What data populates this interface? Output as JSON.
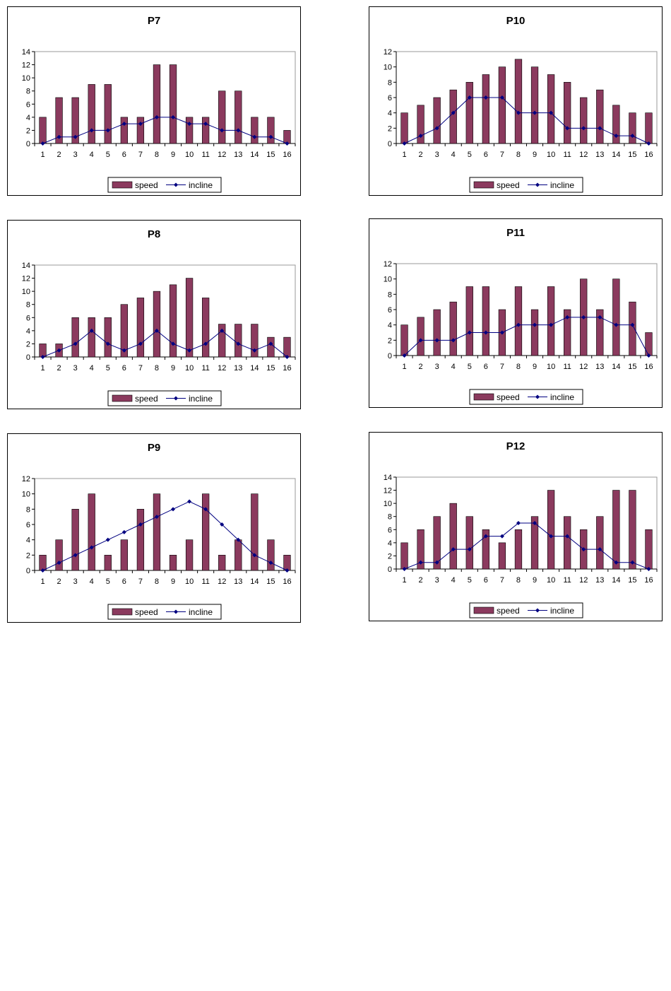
{
  "colors": {
    "speed": "#8B3A5E",
    "incline": "#000080",
    "plot_border": "#999999"
  },
  "chart_data": [
    {
      "id": "p7",
      "type": "bar",
      "title": "P7",
      "ylim": [
        0,
        14
      ],
      "yticks": [
        "0",
        "2",
        "4",
        "6",
        "8",
        "10",
        "12",
        "14"
      ],
      "categories": [
        "1",
        "2",
        "3",
        "4",
        "5",
        "6",
        "7",
        "8",
        "9",
        "10",
        "11",
        "12",
        "13",
        "14",
        "15",
        "16"
      ],
      "series": [
        {
          "name": "speed",
          "type": "bar",
          "values": [
            4,
            7,
            7,
            9,
            9,
            4,
            4,
            12,
            12,
            4,
            4,
            8,
            8,
            4,
            4,
            2
          ]
        },
        {
          "name": "incline",
          "type": "line",
          "values": [
            0,
            1,
            1,
            2,
            2,
            3,
            3,
            4,
            4,
            3,
            3,
            2,
            2,
            1,
            1,
            0
          ]
        }
      ],
      "legend": "bottom",
      "grid": false
    },
    {
      "id": "p10",
      "type": "bar",
      "title": "P10",
      "ylim": [
        0,
        12
      ],
      "yticks": [
        "0",
        "2",
        "4",
        "6",
        "8",
        "10",
        "12"
      ],
      "categories": [
        "1",
        "2",
        "3",
        "4",
        "5",
        "6",
        "7",
        "8",
        "9",
        "10",
        "11",
        "12",
        "13",
        "14",
        "15",
        "16"
      ],
      "series": [
        {
          "name": "speed",
          "type": "bar",
          "values": [
            4,
            5,
            6,
            7,
            8,
            9,
            10,
            11,
            10,
            9,
            8,
            6,
            7,
            5,
            4,
            4
          ]
        },
        {
          "name": "incline",
          "type": "line",
          "values": [
            0,
            1,
            2,
            4,
            6,
            6,
            6,
            4,
            4,
            4,
            2,
            2,
            2,
            1,
            1,
            0
          ]
        }
      ],
      "legend": "bottom",
      "grid": false
    },
    {
      "id": "p8",
      "type": "bar",
      "title": "P8",
      "ylim": [
        0,
        14
      ],
      "yticks": [
        "0",
        "2",
        "4",
        "6",
        "8",
        "10",
        "12",
        "14"
      ],
      "categories": [
        "1",
        "2",
        "3",
        "4",
        "5",
        "6",
        "7",
        "8",
        "9",
        "10",
        "11",
        "12",
        "13",
        "14",
        "15",
        "16"
      ],
      "series": [
        {
          "name": "speed",
          "type": "bar",
          "values": [
            2,
            2,
            6,
            6,
            6,
            8,
            9,
            10,
            11,
            12,
            9,
            5,
            5,
            5,
            3,
            3
          ]
        },
        {
          "name": "incline",
          "type": "line",
          "values": [
            0,
            1,
            2,
            4,
            2,
            1,
            2,
            4,
            2,
            1,
            2,
            4,
            2,
            1,
            2,
            0
          ]
        }
      ],
      "legend": "bottom",
      "grid": false
    },
    {
      "id": "p11",
      "type": "bar",
      "title": "P11",
      "ylim": [
        0,
        12
      ],
      "yticks": [
        "0",
        "2",
        "4",
        "6",
        "8",
        "10",
        "12"
      ],
      "categories": [
        "1",
        "2",
        "3",
        "4",
        "5",
        "6",
        "7",
        "8",
        "9",
        "10",
        "11",
        "12",
        "13",
        "14",
        "15",
        "16"
      ],
      "series": [
        {
          "name": "speed",
          "type": "bar",
          "values": [
            4,
            5,
            6,
            7,
            9,
            9,
            6,
            9,
            6,
            9,
            6,
            10,
            6,
            10,
            7,
            3
          ]
        },
        {
          "name": "incline",
          "type": "line",
          "values": [
            0,
            2,
            2,
            2,
            3,
            3,
            3,
            4,
            4,
            4,
            5,
            5,
            5,
            4,
            4,
            0
          ]
        }
      ],
      "legend": "bottom",
      "grid": false
    },
    {
      "id": "p9",
      "type": "bar",
      "title": "P9",
      "ylim": [
        0,
        12
      ],
      "yticks": [
        "0",
        "2",
        "4",
        "6",
        "8",
        "10",
        "12"
      ],
      "categories": [
        "1",
        "2",
        "3",
        "4",
        "5",
        "6",
        "7",
        "8",
        "9",
        "10",
        "11",
        "12",
        "13",
        "14",
        "15",
        "16"
      ],
      "series": [
        {
          "name": "speed",
          "type": "bar",
          "values": [
            2,
            4,
            8,
            10,
            2,
            4,
            8,
            10,
            2,
            4,
            10,
            2,
            4,
            10,
            4,
            2
          ]
        },
        {
          "name": "incline",
          "type": "line",
          "values": [
            0,
            1,
            2,
            3,
            4,
            5,
            6,
            7,
            8,
            9,
            8,
            6,
            4,
            2,
            1,
            0
          ]
        }
      ],
      "legend": "bottom",
      "grid": false
    },
    {
      "id": "p12",
      "type": "bar",
      "title": "P12",
      "ylim": [
        0,
        14
      ],
      "yticks": [
        "0",
        "2",
        "4",
        "6",
        "8",
        "10",
        "12",
        "14"
      ],
      "categories": [
        "1",
        "2",
        "3",
        "4",
        "5",
        "6",
        "7",
        "8",
        "9",
        "10",
        "11",
        "12",
        "13",
        "14",
        "15",
        "16"
      ],
      "series": [
        {
          "name": "speed",
          "type": "bar",
          "values": [
            4,
            6,
            8,
            10,
            8,
            6,
            4,
            6,
            8,
            12,
            8,
            6,
            8,
            12,
            12,
            6
          ]
        },
        {
          "name": "incline",
          "type": "line",
          "values": [
            0,
            1,
            1,
            3,
            3,
            5,
            5,
            7,
            7,
            5,
            5,
            3,
            3,
            1,
            1,
            0
          ]
        }
      ],
      "legend": "bottom",
      "grid": false
    }
  ]
}
